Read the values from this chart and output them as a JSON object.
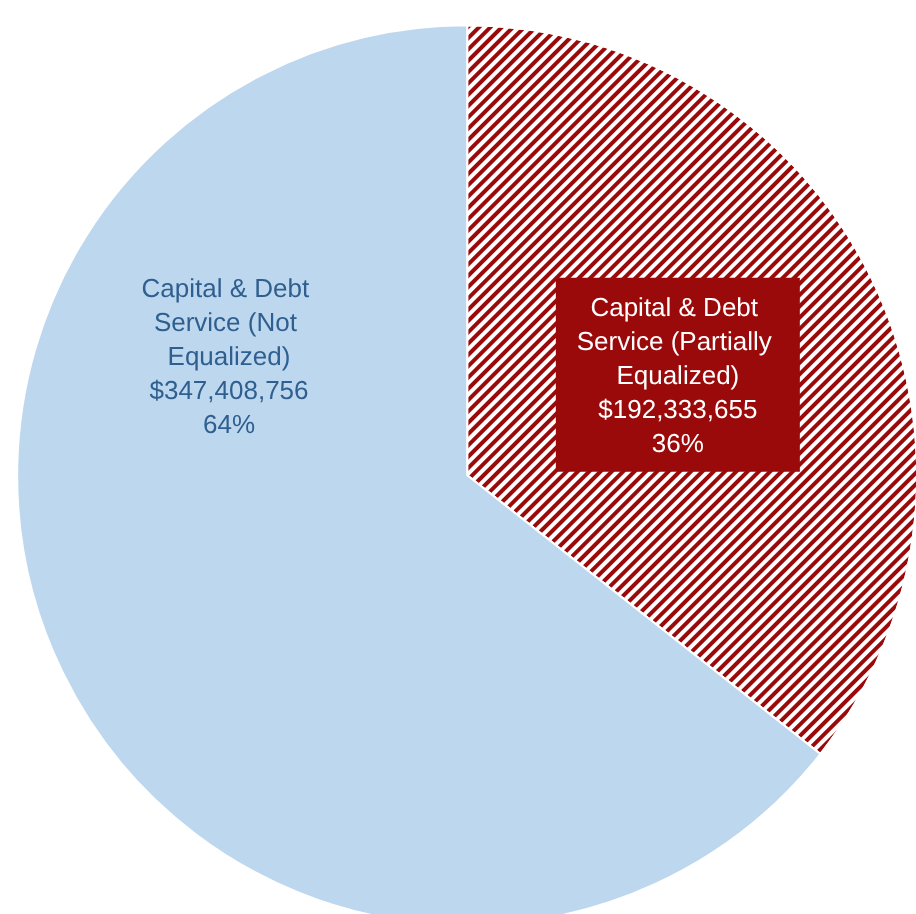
{
  "chart_data": {
    "type": "pie",
    "categories": [
      "Capital & Debt Service (Partially Equalized)",
      "Capital & Debt Service (Not Equalized)"
    ],
    "values": [
      192333655,
      347408756
    ],
    "colors": [
      "#9b0a0a",
      "#bdd7ee"
    ],
    "value_labels": [
      "$192,333,655\n36%",
      "$347,408,756\n64%"
    ],
    "legend": false
  }
}
